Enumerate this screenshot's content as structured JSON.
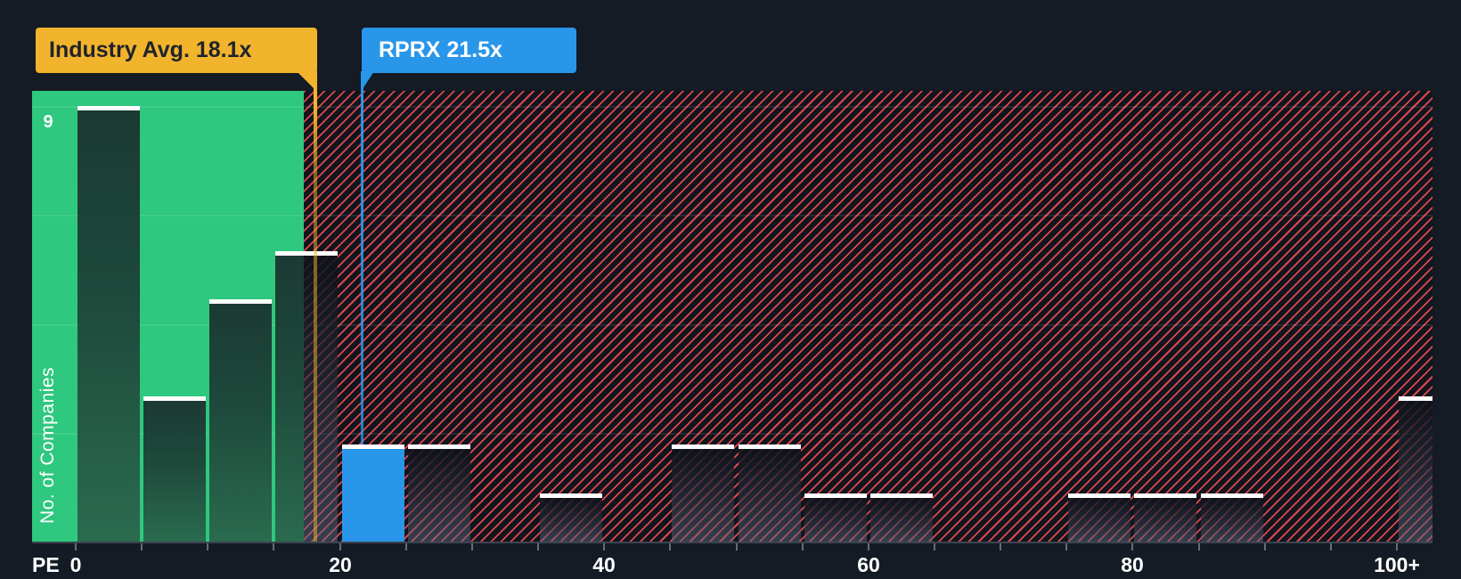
{
  "chart_data": {
    "type": "bar",
    "subtype": "pe-ratio-histogram",
    "title": "",
    "x_axis": {
      "label": "PE",
      "major_tick_values": [
        0,
        20,
        40,
        60,
        80,
        100
      ],
      "major_tick_labels": [
        "0",
        "20",
        "40",
        "60",
        "80",
        "100+"
      ],
      "minor_tick_step": 5,
      "range": [
        0,
        102.5
      ]
    },
    "y_axis": {
      "label": "No. of Companies",
      "range": [
        0,
        9.3
      ],
      "gridline_values": [
        2.25,
        4.5,
        6.75,
        9
      ],
      "tallest_bar_label": "9"
    },
    "bins": [
      {
        "start": 0,
        "end": 5,
        "count": 9
      },
      {
        "start": 5,
        "end": 10,
        "count": 3
      },
      {
        "start": 10,
        "end": 15,
        "count": 5
      },
      {
        "start": 15,
        "end": 20,
        "count": 6
      },
      {
        "start": 20,
        "end": 25,
        "count": 2
      },
      {
        "start": 25,
        "end": 30,
        "count": 2
      },
      {
        "start": 30,
        "end": 35,
        "count": 0
      },
      {
        "start": 35,
        "end": 40,
        "count": 1
      },
      {
        "start": 40,
        "end": 45,
        "count": 0
      },
      {
        "start": 45,
        "end": 50,
        "count": 2
      },
      {
        "start": 50,
        "end": 55,
        "count": 2
      },
      {
        "start": 55,
        "end": 60,
        "count": 1
      },
      {
        "start": 60,
        "end": 65,
        "count": 1
      },
      {
        "start": 65,
        "end": 70,
        "count": 0
      },
      {
        "start": 70,
        "end": 75,
        "count": 0
      },
      {
        "start": 75,
        "end": 80,
        "count": 1
      },
      {
        "start": 80,
        "end": 85,
        "count": 1
      },
      {
        "start": 85,
        "end": 90,
        "count": 1
      },
      {
        "start": 90,
        "end": 95,
        "count": 0
      },
      {
        "start": 95,
        "end": 100,
        "count": 0
      },
      {
        "start": 100,
        "end": 105,
        "count": 3
      }
    ],
    "highlight_bin_start": 20,
    "markers": [
      {
        "label": "Industry Avg. 18.1x",
        "value": 18.1,
        "color": "#f2b42c"
      },
      {
        "label": "RPRX 21.5x",
        "value": 21.5,
        "color": "#2996ea"
      }
    ],
    "green_zone_end_value": 17.2,
    "grid": true,
    "legend_position": "none"
  },
  "colors": {
    "background": "#151b25",
    "industry_green": "#2ec87e",
    "highlight_blue": "#2996ea",
    "marker_yellow": "#f2b42c",
    "hatch_red": "#eb4a4e",
    "bar_top_line": "#ffffff"
  }
}
